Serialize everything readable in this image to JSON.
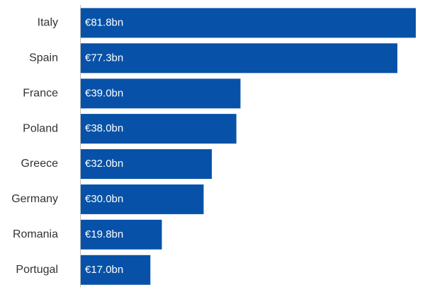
{
  "chart_data": {
    "type": "bar",
    "orientation": "horizontal",
    "categories": [
      "Italy",
      "Spain",
      "France",
      "Poland",
      "Greece",
      "Germany",
      "Romania",
      "Portugal"
    ],
    "values": [
      81.8,
      77.3,
      39.0,
      38.0,
      32.0,
      30.0,
      19.8,
      17.0
    ],
    "value_labels": [
      "€81.8bn",
      "€77.3bn",
      "€39.0bn",
      "€38.0bn",
      "€32.0bn",
      "€30.0bn",
      "€19.8bn",
      "€17.0bn"
    ],
    "xlim": [
      0,
      81.8
    ],
    "grid": false,
    "legend": "none",
    "title": "",
    "xlabel": "",
    "ylabel": "",
    "colors": {
      "bar": "#0752a8",
      "axis": "#bdbdbd",
      "category_text": "#333333",
      "value_text": "#ffffff"
    }
  }
}
